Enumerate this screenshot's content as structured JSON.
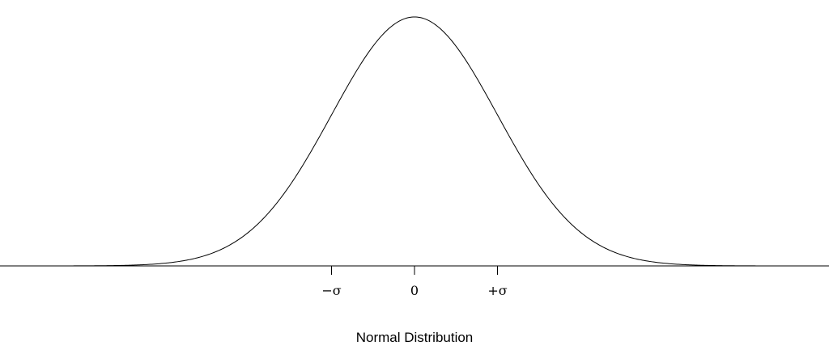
{
  "chart_data": {
    "type": "line",
    "title": "",
    "xlabel": "Normal Distribution",
    "ylabel": "",
    "xlim": [
      -5,
      5
    ],
    "ylim": [
      0,
      0.3989
    ],
    "grid": false,
    "legend": "none",
    "x_ticks": [
      {
        "value": -1,
        "label": "−σ"
      },
      {
        "value": 0,
        "label": "0"
      },
      {
        "value": 1,
        "label": "+σ"
      }
    ],
    "series": [
      {
        "distribution": "normal",
        "mean": 0,
        "sd": 1,
        "peak": 0.3989,
        "color": "#000000"
      }
    ]
  }
}
